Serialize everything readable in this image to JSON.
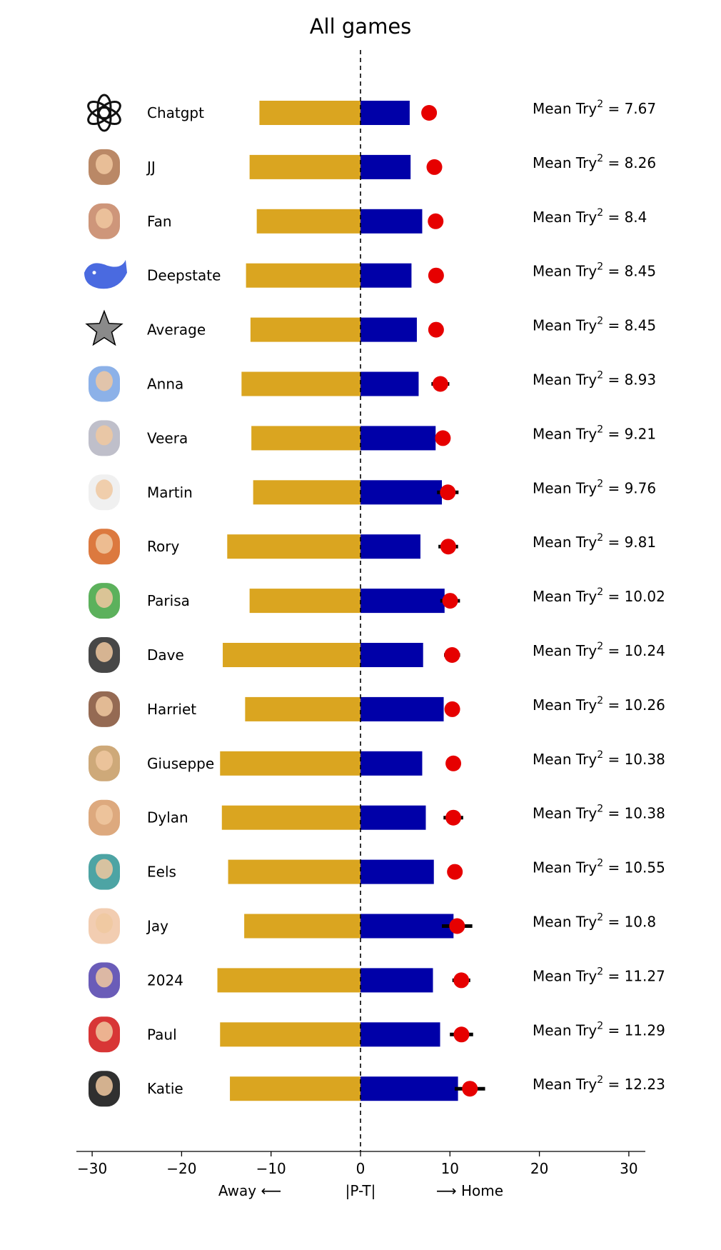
{
  "chart_data": {
    "type": "bar",
    "title": "All games",
    "xlim": [
      -30,
      30
    ],
    "xticks": [
      -30,
      -20,
      -10,
      0,
      10,
      20,
      30
    ],
    "xtick_labels": [
      "−30",
      "−20",
      "−10",
      "0",
      "10",
      "20",
      "30"
    ],
    "xlabels": {
      "left": "Away ⟵",
      "center": "|P-T|",
      "right": "⟶ Home"
    },
    "stat_prefix": "Mean Try",
    "stat_sup": "2",
    "colors": {
      "away": "#DAA520",
      "home": "#0000A8",
      "marker": "#E60000",
      "error": "#000000"
    },
    "players": [
      {
        "name": "Chatgpt",
        "away": -11.3,
        "home": 5.5,
        "marker": 7.67,
        "err": 0,
        "mean_try2": "7.67",
        "icon": "openai-logo-icon"
      },
      {
        "name": "JJ",
        "away": -12.4,
        "home": 5.6,
        "marker": 8.26,
        "err": 0.5,
        "mean_try2": "8.26",
        "icon": "jj-face-icon"
      },
      {
        "name": "Fan",
        "away": -11.6,
        "home": 6.9,
        "marker": 8.4,
        "err": 0,
        "mean_try2": "8.4",
        "icon": "fan-face-icon"
      },
      {
        "name": "Deepstate",
        "away": -12.8,
        "home": 5.7,
        "marker": 8.45,
        "err": 0,
        "mean_try2": "8.45",
        "icon": "whale-icon"
      },
      {
        "name": "Average",
        "away": -12.3,
        "home": 6.3,
        "marker": 8.45,
        "err": 0,
        "mean_try2": "8.45",
        "icon": "star-icon"
      },
      {
        "name": "Anna",
        "away": -13.3,
        "home": 6.5,
        "marker": 8.93,
        "err": 1.0,
        "mean_try2": "8.93",
        "icon": "elephant-face-icon"
      },
      {
        "name": "Veera",
        "away": -12.2,
        "home": 8.4,
        "marker": 9.21,
        "err": 0,
        "mean_try2": "9.21",
        "icon": "appliance-face-icon"
      },
      {
        "name": "Martin",
        "away": -12.0,
        "home": 9.1,
        "marker": 9.76,
        "err": 1.2,
        "mean_try2": "9.76",
        "icon": "sheep-icon"
      },
      {
        "name": "Rory",
        "away": -14.9,
        "home": 6.7,
        "marker": 9.81,
        "err": 1.1,
        "mean_try2": "9.81",
        "icon": "truck-face-icon"
      },
      {
        "name": "Parisa",
        "away": -12.4,
        "home": 9.4,
        "marker": 10.02,
        "err": 1.1,
        "mean_try2": "10.02",
        "icon": "dinosaur-icon"
      },
      {
        "name": "Dave",
        "away": -15.4,
        "home": 7.0,
        "marker": 10.24,
        "err": 0.9,
        "mean_try2": "10.24",
        "icon": "microwave-icon"
      },
      {
        "name": "Harriet",
        "away": -12.9,
        "home": 9.3,
        "marker": 10.26,
        "err": 0,
        "mean_try2": "10.26",
        "icon": "harriet-face-icon"
      },
      {
        "name": "Giuseppe",
        "away": -15.7,
        "home": 6.9,
        "marker": 10.38,
        "err": 0,
        "mean_try2": "10.38",
        "icon": "giuseppe-face-icon"
      },
      {
        "name": "Dylan",
        "away": -15.5,
        "home": 7.3,
        "marker": 10.38,
        "err": 1.1,
        "mean_try2": "10.38",
        "icon": "potato-head-icon"
      },
      {
        "name": "Eels",
        "away": -14.8,
        "home": 8.2,
        "marker": 10.55,
        "err": 0.8,
        "mean_try2": "10.55",
        "icon": "eel-icon"
      },
      {
        "name": "Jay",
        "away": -13.0,
        "home": 10.4,
        "marker": 10.8,
        "err": 1.7,
        "mean_try2": "10.8",
        "icon": "baby-face-icon"
      },
      {
        "name": "2024",
        "away": -16.0,
        "home": 8.1,
        "marker": 11.27,
        "err": 1.0,
        "mean_try2": "11.27",
        "icon": "year-2024-badge-icon"
      },
      {
        "name": "Paul",
        "away": -15.7,
        "home": 8.9,
        "marker": 11.29,
        "err": 1.3,
        "mean_try2": "11.29",
        "icon": "fire-extinguisher-icon"
      },
      {
        "name": "Katie",
        "away": -14.6,
        "home": 10.9,
        "marker": 12.23,
        "err": 1.7,
        "mean_try2": "12.23",
        "icon": "pint-glass-icon"
      }
    ]
  }
}
